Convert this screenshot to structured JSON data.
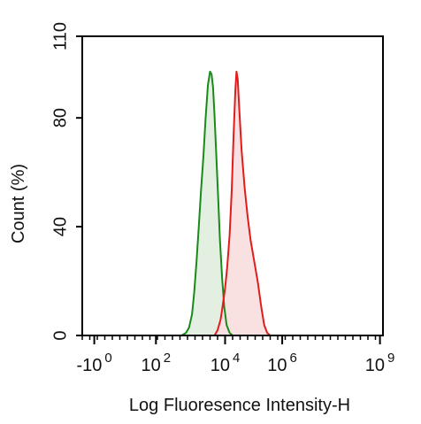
{
  "chart_data": {
    "type": "area",
    "xlabel": "Log Fluoresence Intensity-H",
    "ylabel": "Count  (%)",
    "xscale": "biexponential-log",
    "ylim": [
      0,
      110
    ],
    "yticks": [
      {
        "value": 0,
        "label": "0"
      },
      {
        "value": 40,
        "label": "40"
      },
      {
        "value": 80,
        "label": "80"
      },
      {
        "value": 110,
        "label": "110"
      }
    ],
    "xticks": [
      {
        "position": 0.04,
        "base": "-10",
        "exp": "0"
      },
      {
        "position": 0.245,
        "base": "10",
        "exp": "2"
      },
      {
        "position": 0.475,
        "base": "10",
        "exp": "4"
      },
      {
        "position": 0.665,
        "base": "10",
        "exp": "6"
      },
      {
        "position": 0.99,
        "base": "10",
        "exp": "9"
      }
    ],
    "grid": false,
    "legend": "none",
    "series": [
      {
        "color": "#1a8a1a",
        "fill": "#e3f0e1",
        "points": [
          [
            0.33,
            0
          ],
          [
            0.345,
            1
          ],
          [
            0.355,
            3
          ],
          [
            0.365,
            8
          ],
          [
            0.372,
            16
          ],
          [
            0.38,
            28
          ],
          [
            0.388,
            42
          ],
          [
            0.395,
            55
          ],
          [
            0.403,
            68
          ],
          [
            0.41,
            82
          ],
          [
            0.418,
            95
          ],
          [
            0.425,
            100
          ],
          [
            0.43,
            99
          ],
          [
            0.435,
            94
          ],
          [
            0.44,
            83
          ],
          [
            0.446,
            68
          ],
          [
            0.452,
            52
          ],
          [
            0.458,
            36
          ],
          [
            0.465,
            22
          ],
          [
            0.472,
            11
          ],
          [
            0.48,
            4
          ],
          [
            0.49,
            1
          ],
          [
            0.5,
            0
          ]
        ]
      },
      {
        "color": "#e01c1c",
        "fill": "#f9e1e1",
        "points": [
          [
            0.44,
            0
          ],
          [
            0.45,
            2
          ],
          [
            0.46,
            6
          ],
          [
            0.468,
            12
          ],
          [
            0.475,
            18
          ],
          [
            0.482,
            26
          ],
          [
            0.49,
            38
          ],
          [
            0.497,
            55
          ],
          [
            0.503,
            75
          ],
          [
            0.509,
            93
          ],
          [
            0.513,
            100
          ],
          [
            0.517,
            97
          ],
          [
            0.522,
            86
          ],
          [
            0.53,
            70
          ],
          [
            0.54,
            56
          ],
          [
            0.55,
            45
          ],
          [
            0.56,
            36
          ],
          [
            0.572,
            28
          ],
          [
            0.584,
            20
          ],
          [
            0.595,
            11
          ],
          [
            0.605,
            4
          ],
          [
            0.615,
            1
          ],
          [
            0.625,
            0
          ]
        ]
      }
    ]
  }
}
